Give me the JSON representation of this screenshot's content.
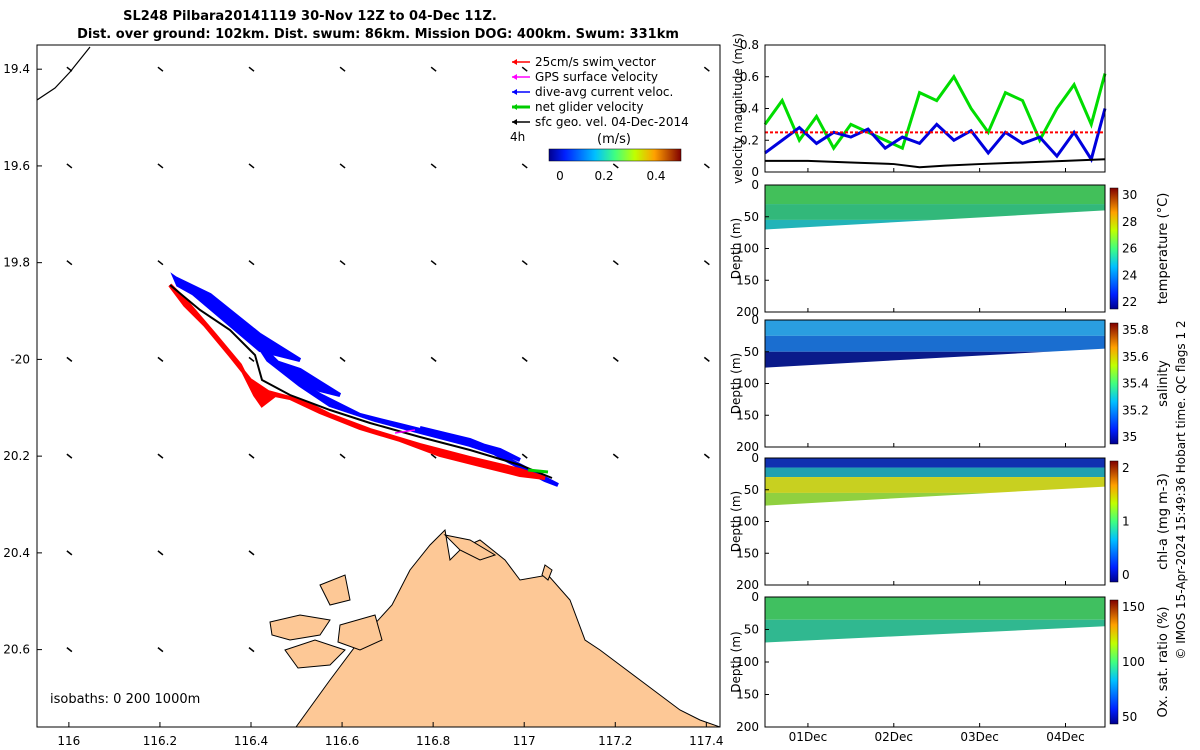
{
  "title": {
    "line1": "SL248 Pilbara20141119 30-Nov 12Z to 04-Dec 11Z.",
    "line2": "Dist. over ground: 102km. Dist. swum: 86km. Mission DOG: 400km. Swum: 331km"
  },
  "map": {
    "legend": [
      {
        "label": "25cm/s swim vector",
        "color": "#ff0000"
      },
      {
        "label": "GPS surface velocity",
        "color": "#ff00ff"
      },
      {
        "label": "dive-avg current veloc.",
        "color": "#0000ff"
      },
      {
        "label": "net glider velocity",
        "color": "#00cc00"
      },
      {
        "label": "sfc geo. vel. 04-Dec-2014",
        "color": "#000000"
      }
    ],
    "interval_label": "4h",
    "colorbar_label": "(m/s)",
    "colorbar_ticks": [
      "0",
      "0.2",
      "0.4"
    ],
    "isobaths_label": "isobaths: 0   200  1000m",
    "land_color": "#fdc896",
    "track_colors": {
      "swim": "#ff0000",
      "current": "#0000ff",
      "track": "#000000"
    },
    "lon_ticks": [
      116,
      116.2,
      116.4,
      116.6,
      116.8,
      117,
      117.2,
      117.4
    ],
    "lat_ticks": [
      -19.4,
      -19.6,
      -19.8,
      -20,
      -20.2,
      -20.4,
      -20.6
    ],
    "lon_tick_labels": [
      "116",
      "116.2",
      "116.4",
      "116.6",
      "116.8",
      "117",
      "117.2",
      "117.4"
    ],
    "lat_tick_labels": [
      "19.4",
      "19.6",
      "19.8",
      "-20",
      "20.2",
      "20.4",
      "20.6"
    ],
    "xlim": [
      115.93,
      117.43
    ],
    "ylim": [
      -20.76,
      -19.35
    ]
  },
  "chart_data": [
    {
      "type": "line",
      "ylabel": "velocity magnitude (m/s)",
      "ylim": [
        0,
        0.8
      ],
      "yticks": [
        "0",
        "0.2",
        "0.4",
        "0.6",
        "0.8"
      ],
      "xlim": [
        0.5,
        4.46
      ],
      "x_units": "days from 30-Nov 00Z",
      "series": [
        {
          "color": "#00dd00",
          "x": [
            0.5,
            0.7,
            0.9,
            1.1,
            1.3,
            1.5,
            1.7,
            1.9,
            2.1,
            2.3,
            2.5,
            2.7,
            2.9,
            3.1,
            3.3,
            3.5,
            3.7,
            3.9,
            4.1,
            4.3,
            4.46
          ],
          "y": [
            0.3,
            0.45,
            0.2,
            0.35,
            0.15,
            0.3,
            0.25,
            0.2,
            0.15,
            0.5,
            0.45,
            0.6,
            0.4,
            0.25,
            0.5,
            0.45,
            0.2,
            0.4,
            0.55,
            0.3,
            0.62
          ]
        },
        {
          "color": "#0000dd",
          "x": [
            0.5,
            0.7,
            0.9,
            1.1,
            1.3,
            1.5,
            1.7,
            1.9,
            2.1,
            2.3,
            2.5,
            2.7,
            2.9,
            3.1,
            3.3,
            3.5,
            3.7,
            3.9,
            4.1,
            4.3,
            4.46
          ],
          "y": [
            0.12,
            0.2,
            0.28,
            0.18,
            0.25,
            0.22,
            0.27,
            0.15,
            0.22,
            0.18,
            0.3,
            0.2,
            0.26,
            0.12,
            0.25,
            0.18,
            0.22,
            0.1,
            0.25,
            0.08,
            0.4
          ]
        },
        {
          "color": "#ff0000",
          "dashed": true,
          "x": [
            0.5,
            4.46
          ],
          "y": [
            0.25,
            0.25
          ]
        },
        {
          "color": "#000000",
          "x": [
            0.5,
            1.0,
            1.5,
            2.0,
            2.3,
            2.6,
            3.0,
            3.5,
            4.0,
            4.46
          ],
          "y": [
            0.07,
            0.07,
            0.06,
            0.05,
            0.03,
            0.04,
            0.05,
            0.06,
            0.07,
            0.08
          ]
        }
      ]
    },
    {
      "type": "heatmap",
      "ylabel": "Depth (m)",
      "ylim": [
        200,
        0
      ],
      "yticks": [
        "0",
        "50",
        "100",
        "150",
        "200"
      ],
      "colorbar_label": "temperature (°C)",
      "colorbar_ticks": [
        "22",
        "24",
        "26",
        "28",
        "30"
      ],
      "dive_depth": [
        70,
        40
      ],
      "bands": [
        {
          "depth_from": 0,
          "depth_to": 30,
          "color": "#42c05a"
        },
        {
          "depth_from": 30,
          "depth_to": 55,
          "color": "#32b87a"
        },
        {
          "depth_from": 55,
          "depth_to": 75,
          "color": "#22b4b8"
        }
      ]
    },
    {
      "type": "heatmap",
      "ylabel": "Depth (m)",
      "ylim": [
        200,
        0
      ],
      "yticks": [
        "0",
        "50",
        "100",
        "150",
        "200"
      ],
      "colorbar_label": "salinity",
      "colorbar_ticks": [
        "35",
        "35.2",
        "35.4",
        "35.6",
        "35.8"
      ],
      "dive_depth": [
        75,
        45
      ],
      "bands": [
        {
          "depth_from": 0,
          "depth_to": 25,
          "color": "#2a9ee0"
        },
        {
          "depth_from": 25,
          "depth_to": 50,
          "color": "#1a6ed0"
        },
        {
          "depth_from": 50,
          "depth_to": 80,
          "color": "#0a1a8a"
        }
      ]
    },
    {
      "type": "heatmap",
      "ylabel": "Depth (m)",
      "ylim": [
        200,
        0
      ],
      "yticks": [
        "0",
        "50",
        "100",
        "150",
        "200"
      ],
      "colorbar_label": "chl-a (mg m-3)",
      "colorbar_ticks": [
        "0",
        "1",
        "2"
      ],
      "dive_depth": [
        75,
        45
      ],
      "bands": [
        {
          "depth_from": 0,
          "depth_to": 15,
          "color": "#1030b0"
        },
        {
          "depth_from": 15,
          "depth_to": 30,
          "color": "#20a0b0"
        },
        {
          "depth_from": 30,
          "depth_to": 55,
          "color": "#c8d020"
        },
        {
          "depth_from": 55,
          "depth_to": 80,
          "color": "#90d040"
        }
      ]
    },
    {
      "type": "heatmap",
      "ylabel": "Depth (m)",
      "ylim": [
        200,
        0
      ],
      "yticks": [
        "0",
        "50",
        "100",
        "150",
        "200"
      ],
      "colorbar_label": "Ox. sat. ratio (%)",
      "colorbar_ticks": [
        "50",
        "100",
        "150"
      ],
      "dive_depth": [
        70,
        45
      ],
      "bands": [
        {
          "depth_from": 0,
          "depth_to": 35,
          "color": "#40c060"
        },
        {
          "depth_from": 35,
          "depth_to": 75,
          "color": "#30b890"
        }
      ]
    }
  ],
  "time_axis": {
    "labels": [
      "01Dec",
      "02Dec",
      "03Dec",
      "04Dec"
    ],
    "positions": [
      1,
      2,
      3,
      4
    ]
  },
  "side_note": "© IMOS 15-Apr-2024 15:49:36 Hobart time. QC flags 1  2"
}
